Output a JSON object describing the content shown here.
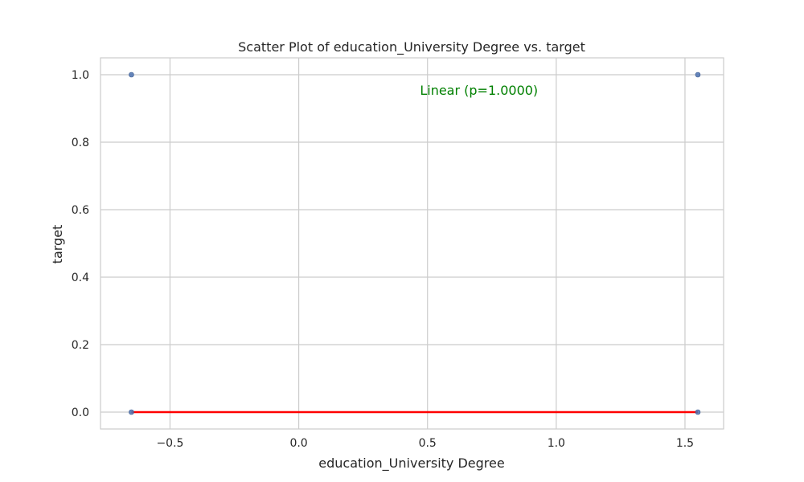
{
  "chart_data": {
    "type": "scatter",
    "title": "Scatter Plot of education_University Degree vs. target",
    "xlabel": "education_University Degree",
    "ylabel": "target",
    "xlim": [
      -0.77,
      1.65
    ],
    "ylim": [
      -0.05,
      1.05
    ],
    "xticks": [
      -0.5,
      0.0,
      0.5,
      1.0,
      1.5
    ],
    "xtick_labels": [
      "−0.5",
      "0.0",
      "0.5",
      "1.0",
      "1.5"
    ],
    "yticks": [
      0.0,
      0.2,
      0.4,
      0.6,
      0.8,
      1.0
    ],
    "ytick_labels": [
      "0.0",
      "0.2",
      "0.4",
      "0.6",
      "0.8",
      "1.0"
    ],
    "grid": true,
    "points": [
      {
        "x": -0.65,
        "y": 1.0
      },
      {
        "x": 1.55,
        "y": 1.0
      },
      {
        "x": -0.65,
        "y": 0.0
      },
      {
        "x": 1.55,
        "y": 0.0
      }
    ],
    "fit_line": {
      "x": [
        -0.65,
        1.55
      ],
      "y": [
        0.0,
        0.0
      ]
    },
    "annotation": {
      "text": "Linear (p=1.0000)",
      "x": 0.7,
      "y": 0.955
    },
    "colors": {
      "points": "#4c72b0",
      "fit_line": "#ff0000",
      "annotation": "#008000",
      "grid": "#cccccc",
      "frame": "#cccccc"
    }
  }
}
